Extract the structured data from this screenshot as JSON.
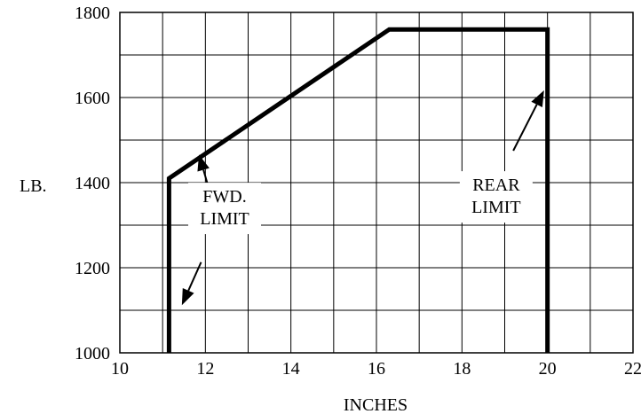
{
  "chart_data": {
    "type": "line",
    "xlabel": "INCHES",
    "ylabel": "LB.",
    "xlim": [
      10,
      22
    ],
    "ylim": [
      1000,
      1800
    ],
    "x_ticks": [
      10,
      12,
      14,
      16,
      18,
      20,
      22
    ],
    "y_ticks": [
      1000,
      1200,
      1400,
      1600,
      1800
    ],
    "x_tick_labels": [
      "10",
      "12",
      "14",
      "16",
      "18",
      "20",
      "22"
    ],
    "y_tick_labels": [
      "1000",
      "1200",
      "1400",
      "1600",
      "1800"
    ],
    "grid": true,
    "grid_x_step": 1,
    "grid_y_step": 100,
    "series": [
      {
        "points": [
          {
            "x": 11.15,
            "y": 1000
          },
          {
            "x": 11.15,
            "y": 1410
          },
          {
            "x": 16.3,
            "y": 1760
          },
          {
            "x": 20.0,
            "y": 1760
          },
          {
            "x": 20.0,
            "y": 1000
          }
        ]
      }
    ],
    "annotations": [
      {
        "lines": [
          "FWD.",
          "LIMIT"
        ],
        "text_x": 12.45,
        "text_y": 1354,
        "arrows": [
          {
            "from": {
              "x": 12.1,
              "y": 1380
            },
            "to": {
              "x": 11.85,
              "y": 1466
            }
          },
          {
            "from": {
              "x": 11.9,
              "y": 1213
            },
            "to": {
              "x": 11.45,
              "y": 1112
            }
          }
        ]
      },
      {
        "lines": [
          "REAR",
          "LIMIT"
        ],
        "text_x": 18.8,
        "text_y": 1381,
        "arrows": [
          {
            "from": {
              "x": 19.2,
              "y": 1475
            },
            "to": {
              "x": 19.92,
              "y": 1617
            }
          }
        ]
      }
    ],
    "colors": {
      "line": "#000000",
      "grid": "#000000",
      "background": "#ffffff"
    }
  }
}
